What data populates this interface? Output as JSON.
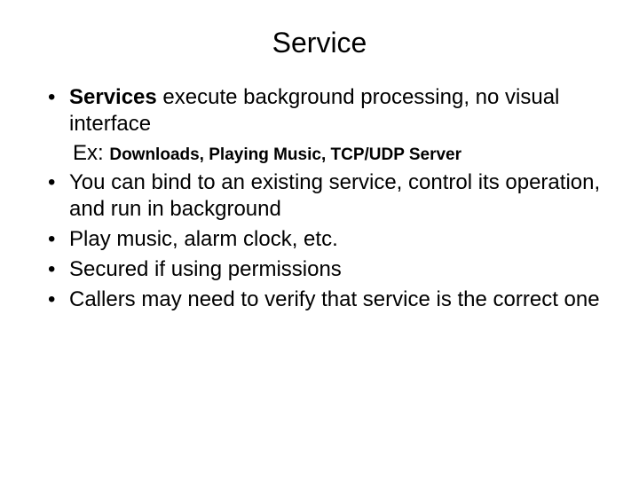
{
  "slide": {
    "title": "Service",
    "background_color": "#ffffff",
    "text_color": "#000000",
    "title_fontsize": 32,
    "body_fontsize": 24,
    "example_fontsize": 19,
    "bullets": [
      {
        "bold_prefix": "Services",
        "text": " execute background processing, no visual interface"
      }
    ],
    "example_prefix": "Ex: ",
    "example_text": "Downloads, Playing Music, TCP/UDP Server",
    "bullets_after": [
      "You can bind to an existing service, control its operation, and  run in background",
      "Play music, alarm clock, etc.",
      "Secured if using permissions",
      "Callers may need to verify that service is the correct one"
    ]
  }
}
